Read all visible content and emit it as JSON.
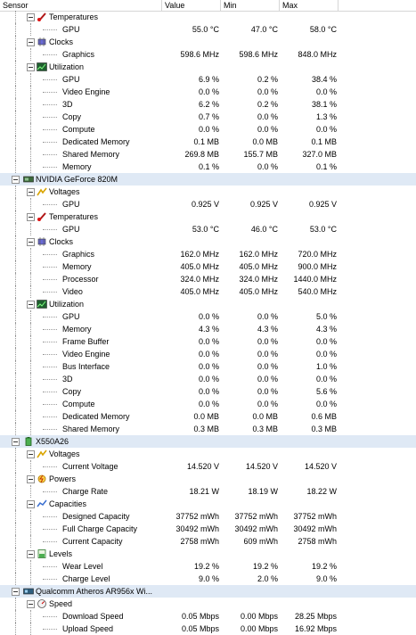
{
  "header": {
    "columns": [
      "Sensor",
      "Value",
      "Min",
      "Max"
    ]
  },
  "rows": [
    {
      "level": 1,
      "type": "group",
      "icon": "thermometer-icon",
      "label": "Temperatures",
      "value": "",
      "min": "",
      "max": ""
    },
    {
      "level": 2,
      "type": "sensor",
      "label": "GPU",
      "value": "55.0 °C",
      "min": "47.0 °C",
      "max": "58.0 °C"
    },
    {
      "level": 1,
      "type": "group",
      "icon": "clock-chip-icon",
      "label": "Clocks",
      "value": "",
      "min": "",
      "max": ""
    },
    {
      "level": 2,
      "type": "sensor",
      "label": "Graphics",
      "value": "598.6 MHz",
      "min": "598.6 MHz",
      "max": "848.0 MHz"
    },
    {
      "level": 1,
      "type": "group",
      "icon": "utilization-icon",
      "label": "Utilization",
      "value": "",
      "min": "",
      "max": ""
    },
    {
      "level": 2,
      "type": "sensor",
      "label": "GPU",
      "value": "6.9 %",
      "min": "0.2 %",
      "max": "38.4 %"
    },
    {
      "level": 2,
      "type": "sensor",
      "label": "Video Engine",
      "value": "0.0 %",
      "min": "0.0 %",
      "max": "0.0 %"
    },
    {
      "level": 2,
      "type": "sensor",
      "label": "3D",
      "value": "6.2 %",
      "min": "0.2 %",
      "max": "38.1 %"
    },
    {
      "level": 2,
      "type": "sensor",
      "label": "Copy",
      "value": "0.7 %",
      "min": "0.0 %",
      "max": "1.3 %"
    },
    {
      "level": 2,
      "type": "sensor",
      "label": "Compute",
      "value": "0.0 %",
      "min": "0.0 %",
      "max": "0.0 %"
    },
    {
      "level": 2,
      "type": "sensor",
      "label": "Dedicated Memory",
      "value": "0.1 MB",
      "min": "0.0 MB",
      "max": "0.1 MB"
    },
    {
      "level": 2,
      "type": "sensor",
      "label": "Shared Memory",
      "value": "269.8 MB",
      "min": "155.7 MB",
      "max": "327.0 MB"
    },
    {
      "level": 2,
      "type": "sensor",
      "label": "Memory",
      "value": "0.1 %",
      "min": "0.0 %",
      "max": "0.1 %"
    },
    {
      "level": 0,
      "type": "device",
      "icon": "gpu-card-icon",
      "label": "NVIDIA GeForce 820M",
      "value": "",
      "min": "",
      "max": "",
      "highlight": true
    },
    {
      "level": 1,
      "type": "group",
      "icon": "voltage-icon",
      "label": "Voltages",
      "value": "",
      "min": "",
      "max": ""
    },
    {
      "level": 2,
      "type": "sensor",
      "label": "GPU",
      "value": "0.925 V",
      "min": "0.925 V",
      "max": "0.925 V"
    },
    {
      "level": 1,
      "type": "group",
      "icon": "thermometer-icon",
      "label": "Temperatures",
      "value": "",
      "min": "",
      "max": ""
    },
    {
      "level": 2,
      "type": "sensor",
      "label": "GPU",
      "value": "53.0 °C",
      "min": "46.0 °C",
      "max": "53.0 °C"
    },
    {
      "level": 1,
      "type": "group",
      "icon": "clock-chip-icon",
      "label": "Clocks",
      "value": "",
      "min": "",
      "max": ""
    },
    {
      "level": 2,
      "type": "sensor",
      "label": "Graphics",
      "value": "162.0 MHz",
      "min": "162.0 MHz",
      "max": "720.0 MHz"
    },
    {
      "level": 2,
      "type": "sensor",
      "label": "Memory",
      "value": "405.0 MHz",
      "min": "405.0 MHz",
      "max": "900.0 MHz"
    },
    {
      "level": 2,
      "type": "sensor",
      "label": "Processor",
      "value": "324.0 MHz",
      "min": "324.0 MHz",
      "max": "1440.0 MHz"
    },
    {
      "level": 2,
      "type": "sensor",
      "label": "Video",
      "value": "405.0 MHz",
      "min": "405.0 MHz",
      "max": "540.0 MHz"
    },
    {
      "level": 1,
      "type": "group",
      "icon": "utilization-icon",
      "label": "Utilization",
      "value": "",
      "min": "",
      "max": ""
    },
    {
      "level": 2,
      "type": "sensor",
      "label": "GPU",
      "value": "0.0 %",
      "min": "0.0 %",
      "max": "5.0 %"
    },
    {
      "level": 2,
      "type": "sensor",
      "label": "Memory",
      "value": "4.3 %",
      "min": "4.3 %",
      "max": "4.3 %"
    },
    {
      "level": 2,
      "type": "sensor",
      "label": "Frame Buffer",
      "value": "0.0 %",
      "min": "0.0 %",
      "max": "0.0 %"
    },
    {
      "level": 2,
      "type": "sensor",
      "label": "Video Engine",
      "value": "0.0 %",
      "min": "0.0 %",
      "max": "0.0 %"
    },
    {
      "level": 2,
      "type": "sensor",
      "label": "Bus Interface",
      "value": "0.0 %",
      "min": "0.0 %",
      "max": "1.0 %"
    },
    {
      "level": 2,
      "type": "sensor",
      "label": "3D",
      "value": "0.0 %",
      "min": "0.0 %",
      "max": "0.0 %"
    },
    {
      "level": 2,
      "type": "sensor",
      "label": "Copy",
      "value": "0.0 %",
      "min": "0.0 %",
      "max": "5.6 %"
    },
    {
      "level": 2,
      "type": "sensor",
      "label": "Compute",
      "value": "0.0 %",
      "min": "0.0 %",
      "max": "0.0 %"
    },
    {
      "level": 2,
      "type": "sensor",
      "label": "Dedicated Memory",
      "value": "0.0 MB",
      "min": "0.0 MB",
      "max": "0.6 MB"
    },
    {
      "level": 2,
      "type": "sensor",
      "label": "Shared Memory",
      "value": "0.3 MB",
      "min": "0.3 MB",
      "max": "0.3 MB"
    },
    {
      "level": 0,
      "type": "device",
      "icon": "battery-icon",
      "label": "X550A26",
      "value": "",
      "min": "",
      "max": "",
      "highlight": true
    },
    {
      "level": 1,
      "type": "group",
      "icon": "voltage-icon",
      "label": "Voltages",
      "value": "",
      "min": "",
      "max": ""
    },
    {
      "level": 2,
      "type": "sensor",
      "label": "Current Voltage",
      "value": "14.520 V",
      "min": "14.520 V",
      "max": "14.520 V"
    },
    {
      "level": 1,
      "type": "group",
      "icon": "power-icon",
      "label": "Powers",
      "value": "",
      "min": "",
      "max": ""
    },
    {
      "level": 2,
      "type": "sensor",
      "label": "Charge Rate",
      "value": "18.21 W",
      "min": "18.19 W",
      "max": "18.22 W"
    },
    {
      "level": 1,
      "type": "group",
      "icon": "capacity-icon",
      "label": "Capacities",
      "value": "",
      "min": "",
      "max": ""
    },
    {
      "level": 2,
      "type": "sensor",
      "label": "Designed Capacity",
      "value": "37752 mWh",
      "min": "37752 mWh",
      "max": "37752 mWh"
    },
    {
      "level": 2,
      "type": "sensor",
      "label": "Full Charge Capacity",
      "value": "30492 mWh",
      "min": "30492 mWh",
      "max": "30492 mWh"
    },
    {
      "level": 2,
      "type": "sensor",
      "label": "Current Capacity",
      "value": "2758 mWh",
      "min": "609 mWh",
      "max": "2758 mWh"
    },
    {
      "level": 1,
      "type": "group",
      "icon": "level-icon",
      "label": "Levels",
      "value": "",
      "min": "",
      "max": ""
    },
    {
      "level": 2,
      "type": "sensor",
      "label": "Wear Level",
      "value": "19.2 %",
      "min": "19.2 %",
      "max": "19.2 %"
    },
    {
      "level": 2,
      "type": "sensor",
      "label": "Charge Level",
      "value": "9.0 %",
      "min": "2.0 %",
      "max": "9.0 %"
    },
    {
      "level": 0,
      "type": "device",
      "icon": "network-card-icon",
      "label": "Qualcomm Atheros AR956x Wi...",
      "value": "",
      "min": "",
      "max": "",
      "highlight": true
    },
    {
      "level": 1,
      "type": "group",
      "icon": "speed-icon",
      "label": "Speed",
      "value": "",
      "min": "",
      "max": ""
    },
    {
      "level": 2,
      "type": "sensor",
      "label": "Download Speed",
      "value": "0.05 Mbps",
      "min": "0.00 Mbps",
      "max": "28.25 Mbps"
    },
    {
      "level": 2,
      "type": "sensor",
      "label": "Upload Speed",
      "value": "0.05 Mbps",
      "min": "0.00 Mbps",
      "max": "16.92 Mbps"
    }
  ]
}
